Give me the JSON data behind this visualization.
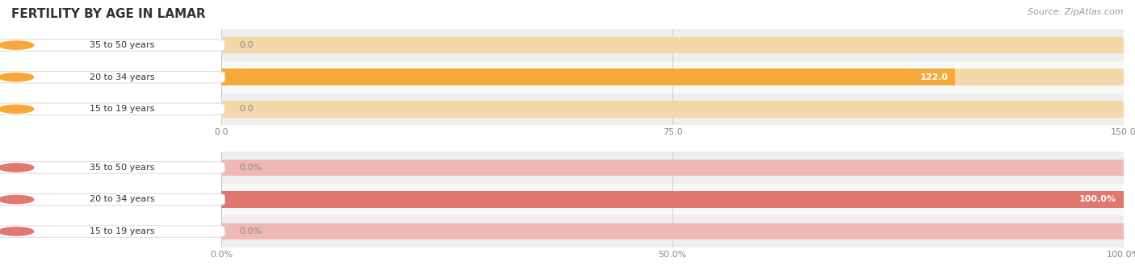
{
  "title": "FERTILITY BY AGE IN LAMAR",
  "source": "Source: ZipAtlas.com",
  "top_chart": {
    "categories": [
      "15 to 19 years",
      "20 to 34 years",
      "35 to 50 years"
    ],
    "values": [
      0.0,
      122.0,
      0.0
    ],
    "xlim": [
      0,
      150
    ],
    "xticks": [
      0.0,
      75.0,
      150.0
    ],
    "xtick_labels": [
      "0.0",
      "75.0",
      "150.0"
    ],
    "bar_color": "#F5A93A",
    "bar_bg_color": "#F5D8A8",
    "label_bg_color": "#FFFFFF",
    "label_circle_color": "#F5A93A",
    "value_color_on_bar": "#FFFFFF",
    "value_color_off_bar": "#888888",
    "value_labels": [
      "0.0",
      "122.0",
      "0.0"
    ]
  },
  "bottom_chart": {
    "categories": [
      "15 to 19 years",
      "20 to 34 years",
      "35 to 50 years"
    ],
    "values": [
      0.0,
      100.0,
      0.0
    ],
    "xlim": [
      0,
      100
    ],
    "xticks": [
      0.0,
      50.0,
      100.0
    ],
    "xtick_labels": [
      "0.0%",
      "50.0%",
      "100.0%"
    ],
    "bar_color": "#E07870",
    "bar_bg_color": "#F0B8B4",
    "label_bg_color": "#FFFFFF",
    "label_circle_color": "#E07870",
    "value_color_on_bar": "#FFFFFF",
    "value_color_off_bar": "#888888",
    "value_labels": [
      "0.0%",
      "100.0%",
      "0.0%"
    ]
  },
  "row_bg_alt_colors": [
    "#EEEEEE",
    "#F8F8F8"
  ],
  "title_color": "#333333",
  "label_text_color": "#333333",
  "tick_color": "#888888",
  "source_color": "#999999",
  "figsize": [
    14.06,
    3.3
  ],
  "dpi": 100
}
